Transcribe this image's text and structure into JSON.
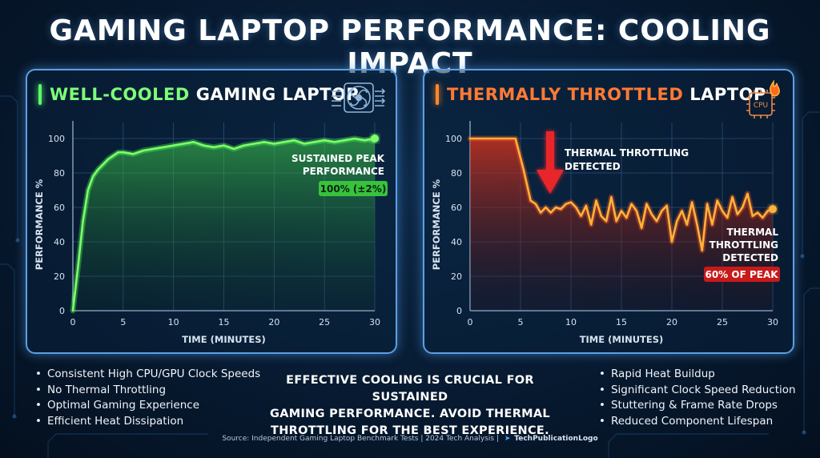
{
  "title": "GAMING LAPTOP PERFORMANCE: COOLING IMPACT",
  "left_panel": {
    "heading_part1": "WELL-COOLED",
    "heading_part2": "GAMING LAPTOP",
    "icon": "cooling-fan-icon",
    "annotation_line1": "SUSTAINED PEAK",
    "annotation_line2": "PERFORMANCE",
    "badge": "100% (±2%)",
    "bullets": [
      "Consistent High CPU/GPU Clock Speeds",
      "No Thermal Throttling",
      "Optimal Gaming Experience",
      "Efficient Heat Dissipation"
    ]
  },
  "right_panel": {
    "heading_part1": "THERMALLY THROTTLED",
    "heading_part2": "LAPTOP",
    "icon": "hot-cpu-icon",
    "icon_label": "CPU",
    "annotation1_line1": "THERMAL THROTTLING",
    "annotation1_line2": "DETECTED",
    "annotation2_line1": "THERMAL",
    "annotation2_line2": "THROTTLING",
    "annotation2_line3": "DETECTED",
    "badge": "60% OF PEAK",
    "bullets": [
      "Rapid Heat Buildup",
      "Significant Clock Speed Reduction",
      "Stuttering & Frame Rate Drops",
      "Reduced Component Lifespan"
    ]
  },
  "center_message": {
    "line1": "EFFECTIVE COOLING IS CRUCIAL FOR SUSTAINED",
    "line2": "GAMING PERFORMANCE. AVOID THERMAL",
    "line3": "THROTTLING FOR THE BEST EXPERIENCE."
  },
  "footer": {
    "source": "Source: Independent Gaming Laptop Benchmark Tests | 2024 Tech Analysis |",
    "logo": "TechPublicationLogo"
  },
  "colors": {
    "cooled_line": "#7dff6a",
    "throttled_line": "#ffb23a",
    "panel_border": "#5aa0e8"
  },
  "chart_data": [
    {
      "type": "line",
      "xlabel": "TIME (MINUTES)",
      "ylabel": "PERFORMANCE %",
      "xlim": [
        0,
        30
      ],
      "ylim": [
        0,
        100
      ],
      "xticks": [
        0,
        5,
        10,
        15,
        20,
        25,
        30
      ],
      "yticks": [
        0,
        20,
        40,
        60,
        80,
        100
      ],
      "grid": true,
      "series": [
        {
          "x": [
            0,
            0.5,
            1,
            1.5,
            2,
            2.5,
            3,
            3.5,
            4,
            4.5,
            5,
            6,
            7,
            8,
            9,
            10,
            11,
            12,
            13,
            14,
            15,
            16,
            17,
            18,
            19,
            20,
            21,
            22,
            23,
            24,
            25,
            26,
            27,
            28,
            29,
            30
          ],
          "y": [
            0,
            25,
            52,
            70,
            78,
            82,
            85,
            88,
            90,
            92,
            92,
            91,
            93,
            94,
            95,
            96,
            97,
            98,
            96,
            95,
            96,
            94,
            96,
            97,
            98,
            97,
            98,
            99,
            97,
            98,
            99,
            98,
            99,
            100,
            99,
            100
          ]
        }
      ]
    },
    {
      "type": "line",
      "xlabel": "TIME (MINUTES)",
      "ylabel": "PERFORMANCE %",
      "xlim": [
        0,
        30
      ],
      "ylim": [
        0,
        100
      ],
      "xticks": [
        0,
        5,
        10,
        15,
        20,
        25,
        30
      ],
      "yticks": [
        0,
        20,
        40,
        60,
        80,
        100
      ],
      "grid": true,
      "series": [
        {
          "x": [
            0,
            4.5,
            5.3,
            6,
            6.5,
            7,
            7.5,
            8,
            8.5,
            9,
            9.5,
            10,
            10.5,
            11,
            11.5,
            12,
            12.5,
            13,
            13.5,
            14,
            14.5,
            15,
            15.5,
            16,
            16.5,
            17,
            17.5,
            18,
            18.5,
            19,
            19.5,
            20,
            20.5,
            21,
            21.5,
            22,
            22.5,
            23,
            23.5,
            24,
            24.5,
            25,
            25.5,
            26,
            26.5,
            27,
            27.5,
            28,
            28.5,
            29,
            29.5,
            30
          ],
          "y": [
            100,
            100,
            82,
            64,
            62,
            57,
            60,
            57,
            60,
            59,
            62,
            63,
            60,
            55,
            61,
            50,
            64,
            55,
            52,
            66,
            52,
            58,
            54,
            62,
            58,
            48,
            62,
            56,
            52,
            58,
            61,
            40,
            52,
            58,
            50,
            63,
            50,
            35,
            62,
            50,
            64,
            58,
            54,
            66,
            56,
            60,
            68,
            55,
            57,
            54,
            58,
            59
          ]
        }
      ]
    }
  ]
}
